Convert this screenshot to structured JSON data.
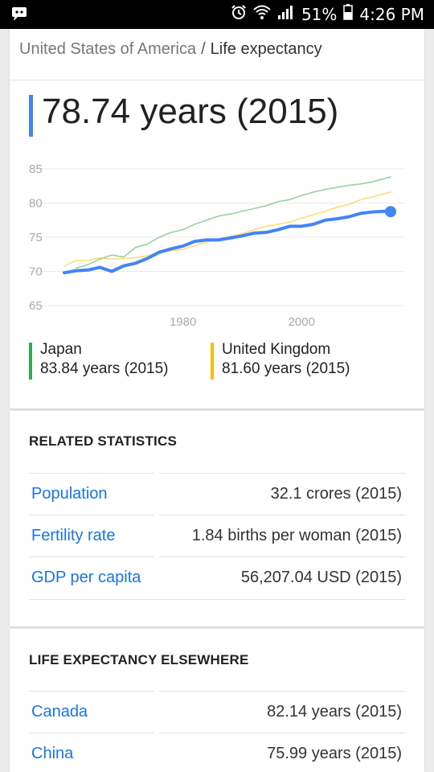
{
  "status_bar": {
    "battery": "51%",
    "time": "4:26 PM",
    "icons": [
      "notification-icon",
      "alarm-icon",
      "wifi-icon",
      "signal-icon",
      "battery-icon"
    ]
  },
  "breadcrumb": {
    "country": "United States of America",
    "separator": "/",
    "topic": "Life expectancy"
  },
  "headline": "78.74 years (2015)",
  "colors": {
    "usa": "#4285f4",
    "japan": "#34a853",
    "uk": "#fbbc05",
    "link": "#1a73e8"
  },
  "chart_data": {
    "type": "line",
    "xlim": [
      1960,
      2015
    ],
    "ylim": [
      65,
      85
    ],
    "y_ticks": [
      65,
      70,
      75,
      80,
      85
    ],
    "x_ticks": [
      1980,
      2000
    ],
    "grid": true,
    "series": [
      {
        "name": "United States of America",
        "color": "#4285f4",
        "emphasis": true,
        "x": [
          1960,
          1962,
          1964,
          1966,
          1968,
          1970,
          1972,
          1974,
          1976,
          1978,
          1980,
          1982,
          1984,
          1986,
          1988,
          1990,
          1992,
          1994,
          1996,
          1998,
          2000,
          2002,
          2004,
          2006,
          2008,
          2010,
          2012,
          2014,
          2015
        ],
        "y": [
          69.8,
          70.1,
          70.2,
          70.6,
          70.0,
          70.8,
          71.2,
          71.9,
          72.8,
          73.3,
          73.7,
          74.4,
          74.6,
          74.6,
          74.9,
          75.2,
          75.6,
          75.7,
          76.1,
          76.6,
          76.6,
          76.9,
          77.5,
          77.7,
          78.0,
          78.5,
          78.7,
          78.8,
          78.74
        ]
      },
      {
        "name": "Japan",
        "color": "#34a853",
        "x": [
          1962,
          1964,
          1966,
          1968,
          1970,
          1972,
          1974,
          1976,
          1978,
          1980,
          1982,
          1984,
          1986,
          1988,
          1990,
          1992,
          1994,
          1996,
          1998,
          2000,
          2002,
          2004,
          2006,
          2008,
          2010,
          2012,
          2014,
          2015
        ],
        "y": [
          70.5,
          71.0,
          71.8,
          72.4,
          72.1,
          73.5,
          74.0,
          75.0,
          75.7,
          76.1,
          76.9,
          77.5,
          78.1,
          78.4,
          78.8,
          79.2,
          79.6,
          80.2,
          80.5,
          81.1,
          81.6,
          82.0,
          82.3,
          82.6,
          82.8,
          83.1,
          83.6,
          83.84
        ]
      },
      {
        "name": "United Kingdom",
        "color": "#fbbc05",
        "x": [
          1960,
          1962,
          1964,
          1966,
          1968,
          1970,
          1972,
          1974,
          1976,
          1978,
          1980,
          1982,
          1984,
          1986,
          1988,
          1990,
          1992,
          1994,
          1996,
          1998,
          2000,
          2002,
          2004,
          2006,
          2008,
          2010,
          2012,
          2014,
          2015
        ],
        "y": [
          70.8,
          71.6,
          71.6,
          72.0,
          71.8,
          71.9,
          72.0,
          72.3,
          72.8,
          73.0,
          73.2,
          73.8,
          74.3,
          74.7,
          75.1,
          75.5,
          76.1,
          76.6,
          76.9,
          77.2,
          77.8,
          78.3,
          78.8,
          79.4,
          79.8,
          80.5,
          80.9,
          81.4,
          81.6
        ]
      }
    ]
  },
  "legend": [
    {
      "name": "Japan",
      "value": "83.84 years (2015)",
      "color": "#34a853"
    },
    {
      "name": "United Kingdom",
      "value": "81.60 years (2015)",
      "color": "#fbbc05"
    }
  ],
  "related": {
    "title": "RELATED STATISTICS",
    "rows": [
      {
        "label": "Population",
        "value": "32.1 crores (2015)"
      },
      {
        "label": "Fertility rate",
        "value": "1.84 births per woman (2015)"
      },
      {
        "label": "GDP per capita",
        "value": "56,207.04 USD (2015)"
      }
    ]
  },
  "elsewhere": {
    "title": "LIFE EXPECTANCY ELSEWHERE",
    "rows": [
      {
        "label": "Canada",
        "value": "82.14 years (2015)"
      },
      {
        "label": "China",
        "value": "75.99 years (2015)"
      }
    ]
  }
}
